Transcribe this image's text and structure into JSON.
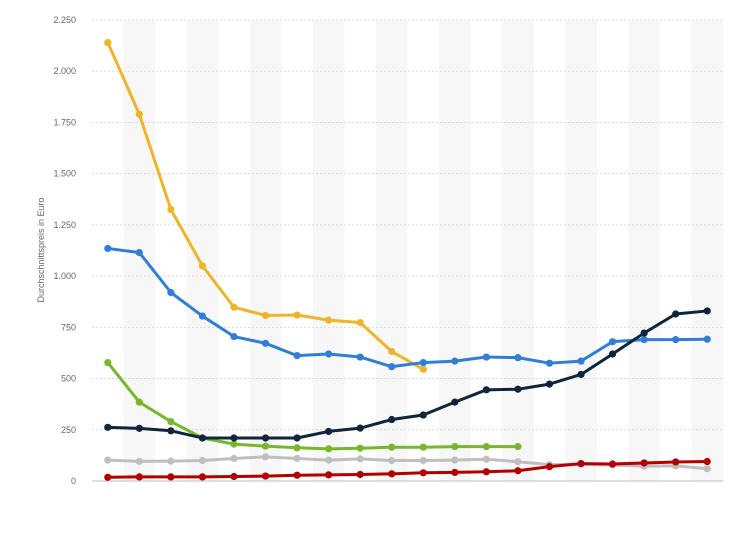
{
  "chart_data": {
    "type": "line",
    "title": "",
    "xlabel": "",
    "ylabel": "Durchschnittspreis in Euro",
    "ylim": [
      0,
      2250
    ],
    "yticks": [
      0,
      250,
      500,
      750,
      1000,
      1250,
      1500,
      1750,
      2000,
      2250
    ],
    "ytick_labels": [
      "0",
      "250",
      "500",
      "750",
      "1.000",
      "1.250",
      "1.500",
      "1.750",
      "2.000",
      "2.250"
    ],
    "x": [
      1,
      2,
      3,
      4,
      5,
      6,
      7,
      8,
      9,
      10,
      11,
      12,
      13,
      14,
      15,
      16,
      17,
      18,
      19,
      20
    ],
    "grid": "horizontal",
    "legend": "none",
    "series": [
      {
        "color": "#f0b429",
        "values": [
          2140,
          1790,
          1325,
          1050,
          848,
          808,
          810,
          785,
          773,
          632,
          545,
          null,
          null,
          null,
          null,
          null,
          null,
          null,
          null,
          null
        ]
      },
      {
        "color": "#2f7ed8",
        "values": [
          1135,
          1115,
          920,
          805,
          705,
          672,
          612,
          620,
          605,
          558,
          578,
          585,
          605,
          602,
          575,
          585,
          680,
          690,
          690,
          692
        ]
      },
      {
        "color": "#77b82a",
        "values": [
          578,
          385,
          290,
          210,
          180,
          170,
          162,
          157,
          160,
          165,
          165,
          168,
          168,
          168,
          null,
          null,
          null,
          null,
          null,
          null
        ]
      },
      {
        "color": "#0e253c",
        "values": [
          262,
          257,
          245,
          210,
          210,
          210,
          210,
          242,
          258,
          300,
          322,
          385,
          445,
          448,
          473,
          520,
          620,
          722,
          815,
          830
        ]
      },
      {
        "color": "#bfbfbf",
        "values": [
          102,
          96,
          97,
          100,
          110,
          118,
          110,
          102,
          108,
          100,
          100,
          102,
          106,
          94,
          80,
          82,
          78,
          72,
          74,
          60
        ]
      },
      {
        "color": "#b30000",
        "values": [
          18,
          20,
          20,
          20,
          22,
          24,
          28,
          30,
          32,
          35,
          40,
          42,
          45,
          50,
          70,
          85,
          83,
          88,
          93,
          95
        ]
      }
    ]
  }
}
